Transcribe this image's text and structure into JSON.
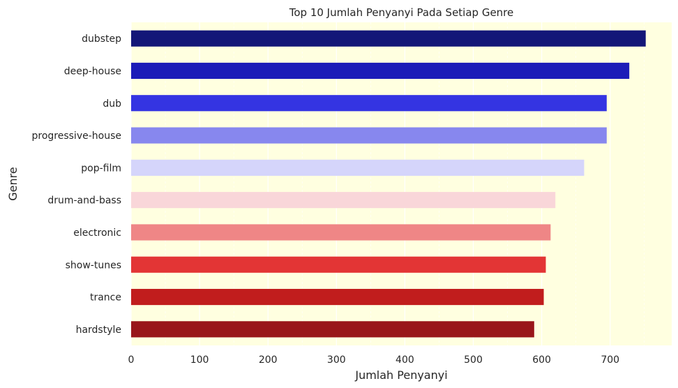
{
  "chart_data": {
    "type": "bar",
    "orientation": "horizontal",
    "title": "Top 10 Jumlah Penyanyi Pada Setiap Genre",
    "xlabel": "Jumlah Penyanyi",
    "ylabel": "Genre",
    "categories": [
      "dubstep",
      "deep-house",
      "dub",
      "progressive-house",
      "pop-film",
      "drum-and-bass",
      "electronic",
      "show-tunes",
      "trance",
      "hardstyle"
    ],
    "values": [
      752,
      728,
      695,
      695,
      662,
      620,
      613,
      606,
      603,
      589
    ],
    "colors": [
      "#131678",
      "#1c1cb8",
      "#3434e2",
      "#8787ee",
      "#d5d5fb",
      "#f9d6d9",
      "#ef8686",
      "#e33535",
      "#c11d1d",
      "#99161a"
    ],
    "xlim": [
      0,
      790
    ],
    "xticks": [
      0,
      100,
      200,
      300,
      400,
      500,
      600,
      700
    ],
    "grid": true,
    "background": "#ffffe0"
  }
}
